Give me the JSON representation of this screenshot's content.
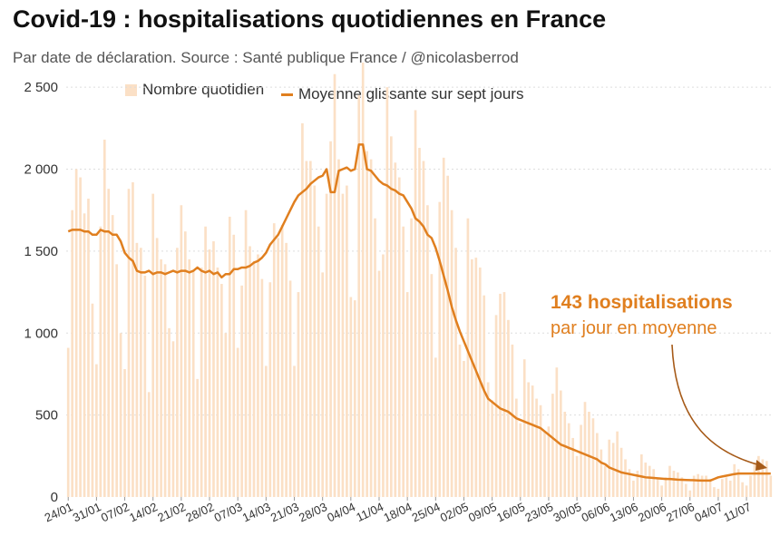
{
  "chart_data": {
    "type": "bar",
    "title": "Covid-19 : hospitalisations quotidiennes en France",
    "subtitle": "Par date de déclaration. Source : Santé publique France / @nicolasberrod",
    "legend": {
      "position": "top",
      "bar_label": "Nombre quotidien",
      "line_label": "Moyenne glissante sur sept jours"
    },
    "colors": {
      "bar": "#fbe0c6",
      "line": "#e07f1f",
      "grid": "#dddddd",
      "annotation": "#e07f1f",
      "arrow": "#a65a18"
    },
    "ylim": [
      0,
      2700
    ],
    "y_ticks": [
      {
        "value": 0,
        "label": "0"
      },
      {
        "value": 500,
        "label": "500"
      },
      {
        "value": 1000,
        "label": "1 000"
      },
      {
        "value": 1500,
        "label": "1 500"
      },
      {
        "value": 2000,
        "label": "2 000"
      },
      {
        "value": 2500,
        "label": "2 500"
      }
    ],
    "x_start": "24/01",
    "x_ticks": [
      {
        "day": 0,
        "label": "24/01"
      },
      {
        "day": 7,
        "label": "31/01"
      },
      {
        "day": 14,
        "label": "07/02"
      },
      {
        "day": 21,
        "label": "14/02"
      },
      {
        "day": 28,
        "label": "21/02"
      },
      {
        "day": 35,
        "label": "28/02"
      },
      {
        "day": 42,
        "label": "07/03"
      },
      {
        "day": 49,
        "label": "14/03"
      },
      {
        "day": 56,
        "label": "21/03"
      },
      {
        "day": 63,
        "label": "28/03"
      },
      {
        "day": 70,
        "label": "04/04"
      },
      {
        "day": 77,
        "label": "11/04"
      },
      {
        "day": 84,
        "label": "18/04"
      },
      {
        "day": 91,
        "label": "25/04"
      },
      {
        "day": 98,
        "label": "02/05"
      },
      {
        "day": 105,
        "label": "09/05"
      },
      {
        "day": 112,
        "label": "16/05"
      },
      {
        "day": 119,
        "label": "23/05"
      },
      {
        "day": 126,
        "label": "30/05"
      },
      {
        "day": 133,
        "label": "06/06"
      },
      {
        "day": 140,
        "label": "13/06"
      },
      {
        "day": 147,
        "label": "20/06"
      },
      {
        "day": 154,
        "label": "27/06"
      },
      {
        "day": 161,
        "label": "04/07"
      },
      {
        "day": 168,
        "label": "11/07"
      }
    ],
    "daily_values": [
      910,
      1750,
      2000,
      1950,
      1730,
      1820,
      1180,
      810,
      1650,
      2180,
      1880,
      1720,
      1420,
      1000,
      780,
      1880,
      1920,
      1550,
      1520,
      1350,
      640,
      1850,
      1580,
      1450,
      1420,
      1030,
      950,
      1520,
      1780,
      1620,
      1450,
      1380,
      720,
      1400,
      1650,
      1510,
      1560,
      1400,
      1300,
      1000,
      1710,
      1600,
      910,
      1290,
      1750,
      1530,
      1440,
      1480,
      1330,
      800,
      1310,
      1670,
      1580,
      1660,
      1550,
      1320,
      800,
      1250,
      2280,
      2050,
      2050,
      1900,
      1650,
      1370,
      1850,
      2170,
      2580,
      2060,
      1850,
      1900,
      1220,
      1200,
      2450,
      2650,
      2110,
      2060,
      1700,
      1380,
      1480,
      2500,
      2200,
      2040,
      1950,
      1650,
      1250,
      1700,
      2360,
      2130,
      2050,
      1780,
      1360,
      850,
      1800,
      2070,
      1960,
      1750,
      1520,
      930,
      830,
      1700,
      1450,
      1460,
      1400,
      1230,
      700,
      590,
      1110,
      1240,
      1250,
      1080,
      930,
      600,
      450,
      840,
      700,
      680,
      600,
      560,
      400,
      430,
      630,
      790,
      650,
      520,
      450,
      360,
      250,
      440,
      580,
      520,
      480,
      390,
      290,
      190,
      350,
      330,
      400,
      300,
      230,
      170,
      100,
      160,
      260,
      210,
      190,
      170,
      110,
      70,
      120,
      190,
      160,
      150,
      120,
      80,
      40,
      130,
      140,
      130,
      130,
      110,
      60,
      50,
      110,
      120,
      100,
      200,
      170,
      90,
      70,
      130,
      210,
      250,
      230,
      220,
      130
    ],
    "moving_average": [
      1620,
      1630,
      1630,
      1630,
      1620,
      1620,
      1600,
      1600,
      1630,
      1620,
      1620,
      1600,
      1600,
      1560,
      1490,
      1460,
      1440,
      1380,
      1370,
      1370,
      1380,
      1360,
      1370,
      1370,
      1360,
      1370,
      1380,
      1370,
      1380,
      1380,
      1370,
      1380,
      1400,
      1380,
      1370,
      1380,
      1360,
      1370,
      1340,
      1360,
      1360,
      1390,
      1390,
      1400,
      1400,
      1410,
      1430,
      1440,
      1460,
      1490,
      1540,
      1570,
      1600,
      1650,
      1700,
      1750,
      1800,
      1840,
      1860,
      1880,
      1910,
      1930,
      1950,
      1960,
      2000,
      1860,
      1860,
      1990,
      2000,
      2010,
      1990,
      2000,
      2150,
      2150,
      2000,
      1990,
      1960,
      1930,
      1910,
      1900,
      1880,
      1870,
      1850,
      1840,
      1800,
      1760,
      1700,
      1680,
      1650,
      1600,
      1580,
      1520,
      1440,
      1350,
      1260,
      1160,
      1080,
      1010,
      950,
      890,
      830,
      770,
      710,
      650,
      600,
      580,
      560,
      540,
      530,
      520,
      500,
      480,
      470,
      460,
      450,
      440,
      430,
      420,
      400,
      380,
      360,
      340,
      320,
      310,
      300,
      290,
      280,
      270,
      260,
      250,
      240,
      230,
      210,
      200,
      180,
      170,
      160,
      150,
      145,
      140,
      135,
      130,
      125,
      120,
      118,
      116,
      114,
      112,
      110,
      110,
      108,
      106,
      105,
      104,
      103,
      102,
      101,
      100,
      100,
      100,
      110,
      120,
      125,
      130,
      135,
      140,
      143,
      143,
      143,
      143,
      143,
      143,
      143,
      143,
      143
    ],
    "annotation": {
      "value": "143 hospitalisations",
      "text": "par jour en moyenne"
    }
  }
}
